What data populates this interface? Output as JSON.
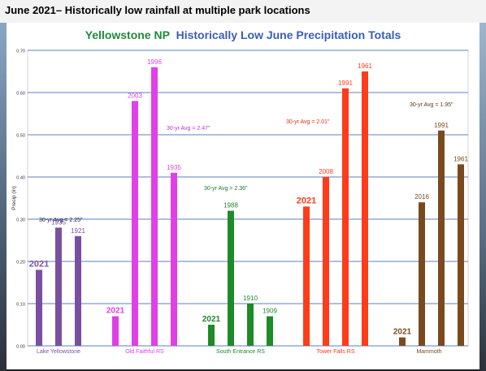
{
  "heading": "June 2021– Historically low rainfall at multiple park locations",
  "colors": {
    "title_park": "#1f8a3c",
    "title_rest": "#3a5db8",
    "grid": "#5a7fc0"
  },
  "chart_data": {
    "type": "bar",
    "title_part1": "Yellowstone NP",
    "title_part2": "Historically Low June Precipitation Totals",
    "ylabel": "Precip (in)",
    "xlabel": "",
    "ylim": [
      0,
      0.7
    ],
    "yticks": [
      "0.00",
      "0.10",
      "0.20",
      "0.30",
      "0.40",
      "0.50",
      "0.60",
      "0.70"
    ],
    "grid": true,
    "groups": [
      {
        "name": "Lake Yellowstone",
        "color": "#7a4fa0",
        "avg_label": "30-yr Avg = 2.25\"",
        "avg_color": "#1a1a4a",
        "bars": [
          {
            "year": "2021",
            "value": 0.18
          },
          {
            "year": "1935",
            "value": 0.28
          },
          {
            "year": "1921",
            "value": 0.26
          }
        ]
      },
      {
        "name": "Old Faithful RS",
        "color": "#e040e8",
        "avg_label": "30-yr Avg = 2.47\"",
        "avg_color": "#c030c8",
        "bars": [
          {
            "year": "2021",
            "value": 0.07
          },
          {
            "year": "2003",
            "value": 0.58
          },
          {
            "year": "1996",
            "value": 0.66
          },
          {
            "year": "1935",
            "value": 0.41
          }
        ]
      },
      {
        "name": "South Entrance RS",
        "color": "#1e8a28",
        "avg_label": "30-yr Avg = 2.36\"",
        "avg_color": "#1e7a28",
        "bars": [
          {
            "year": "2021",
            "value": 0.05
          },
          {
            "year": "1988",
            "value": 0.32
          },
          {
            "year": "1910",
            "value": 0.1
          },
          {
            "year": "1909",
            "value": 0.07
          }
        ]
      },
      {
        "name": "Tower Falls RS",
        "color": "#ff3b1a",
        "avg_label": "30-yr Avg = 2.01\"",
        "avg_color": "#e0301a",
        "bars": [
          {
            "year": "2021",
            "value": 0.33
          },
          {
            "year": "2008",
            "value": 0.4
          },
          {
            "year": "1991",
            "value": 0.61
          },
          {
            "year": "1961",
            "value": 0.65
          }
        ]
      },
      {
        "name": "Mammoth",
        "color": "#7a4a1e",
        "avg_label": "30-yr Avg = 1.95\"",
        "avg_color": "#5a3a14",
        "bars": [
          {
            "year": "2021",
            "value": 0.02
          },
          {
            "year": "2016",
            "value": 0.34
          },
          {
            "year": "1991",
            "value": 0.51
          },
          {
            "year": "1961",
            "value": 0.43
          }
        ]
      }
    ]
  }
}
